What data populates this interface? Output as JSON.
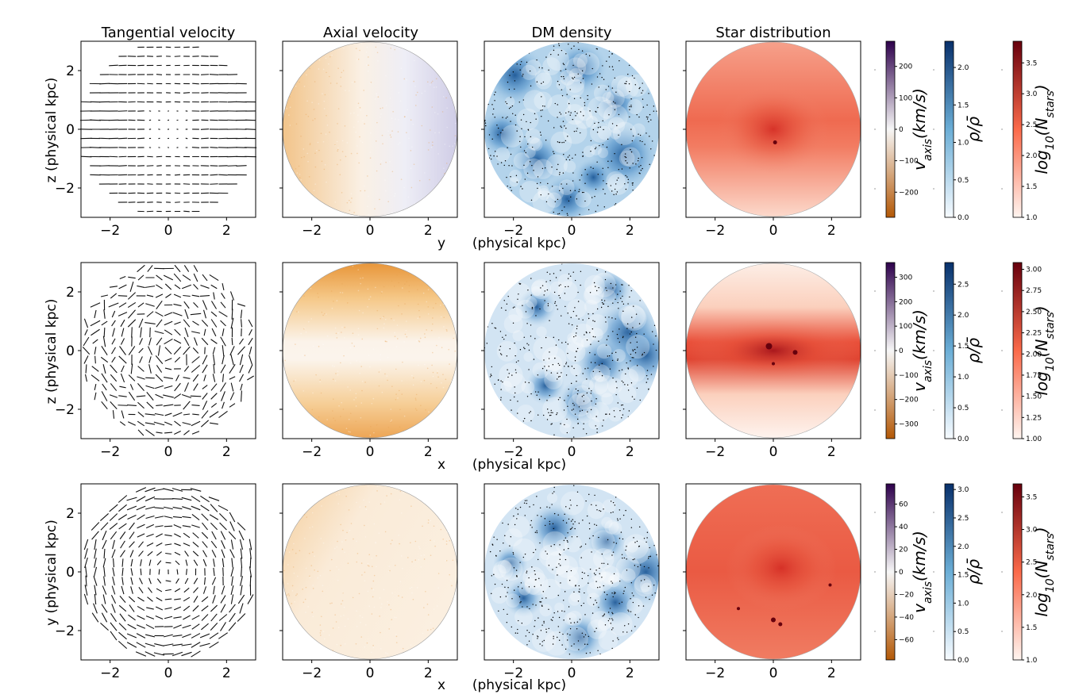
{
  "figure": {
    "column_titles": [
      "Tangential velocity",
      "Axial velocity",
      "DM density",
      "Star distribution"
    ]
  },
  "colors": {
    "vel_neg": "#b35806",
    "vel_mid": "#f7f7f7",
    "vel_pos": "#2d004b",
    "dens_low": "#f7fbff",
    "dens_high": "#08306b",
    "stars_low": "#fff5f0",
    "stars_high": "#67000d",
    "star_particles": "#000000"
  },
  "chart_data": [
    {
      "row": 1,
      "type": "heatmap",
      "ylabel": "z (physical kpc)",
      "xlabel_var": "y",
      "xlabel_unit": "(physical kpc)",
      "xticks": [
        "−2",
        "0",
        "2"
      ],
      "yticks": [
        "2",
        "0",
        "−2"
      ],
      "xlim": [
        -3,
        3
      ],
      "ylim": [
        -3,
        3
      ],
      "colorbars": [
        {
          "label": "v_axis(km/s)",
          "range": [
            -280,
            280
          ],
          "ticks": [
            "200",
            "100",
            "0",
            "−100",
            "−200"
          ]
        },
        {
          "label": "ρ/ρ̄",
          "range": [
            0,
            2.35
          ],
          "ticks": [
            "2.0",
            "1.5",
            "1.0",
            "0.5",
            "0.0"
          ]
        },
        {
          "label": "log10(N_stars)",
          "range": [
            1.0,
            3.85
          ],
          "ticks": [
            "3.5",
            "3.0",
            "2.5",
            "2.0",
            "1.5",
            "1.0"
          ]
        }
      ]
    },
    {
      "row": 2,
      "type": "heatmap",
      "ylabel": "z (physical kpc)",
      "xlabel_var": "x",
      "xlabel_unit": "(physical kpc)",
      "xticks": [
        "−2",
        "0",
        "2"
      ],
      "yticks": [
        "2",
        "0",
        "−2"
      ],
      "xlim": [
        -3,
        3
      ],
      "ylim": [
        -3,
        3
      ],
      "colorbars": [
        {
          "label": "v_axis(km/s)",
          "range": [
            -360,
            360
          ],
          "ticks": [
            "300",
            "200",
            "100",
            "0",
            "−100",
            "−200",
            "−300"
          ]
        },
        {
          "label": "ρ/ρ̄",
          "range": [
            0,
            2.85
          ],
          "ticks": [
            "2.5",
            "2.0",
            "1.5",
            "1.0",
            "0.5",
            "0.0"
          ]
        },
        {
          "label": "log10(N_stars)",
          "range": [
            1.0,
            3.08
          ],
          "ticks": [
            "3.00",
            "2.75",
            "2.50",
            "2.25",
            "2.00",
            "1.75",
            "1.50",
            "1.25",
            "1.00"
          ]
        }
      ]
    },
    {
      "row": 3,
      "type": "heatmap",
      "ylabel": "y (physical kpc)",
      "xlabel_var": "x",
      "xlabel_unit": "(physical kpc)",
      "xticks": [
        "−2",
        "0",
        "2"
      ],
      "yticks": [
        "2",
        "0",
        "−2"
      ],
      "xlim": [
        -3,
        3
      ],
      "ylim": [
        -3,
        3
      ],
      "colorbars": [
        {
          "label": "v_axis(km/s)",
          "range": [
            -78,
            78
          ],
          "ticks": [
            "60",
            "40",
            "20",
            "0",
            "−20",
            "−40",
            "−60"
          ]
        },
        {
          "label": "ρ/ρ̄",
          "range": [
            0,
            3.1
          ],
          "ticks": [
            "3.0",
            "2.5",
            "2.0",
            "1.5",
            "1.0",
            "0.5",
            "0.0"
          ]
        },
        {
          "label": "log10(N_stars)",
          "range": [
            1.0,
            3.7
          ],
          "ticks": [
            "3.5",
            "3.0",
            "2.5",
            "2.0",
            "1.5",
            "1.0"
          ]
        }
      ]
    }
  ]
}
